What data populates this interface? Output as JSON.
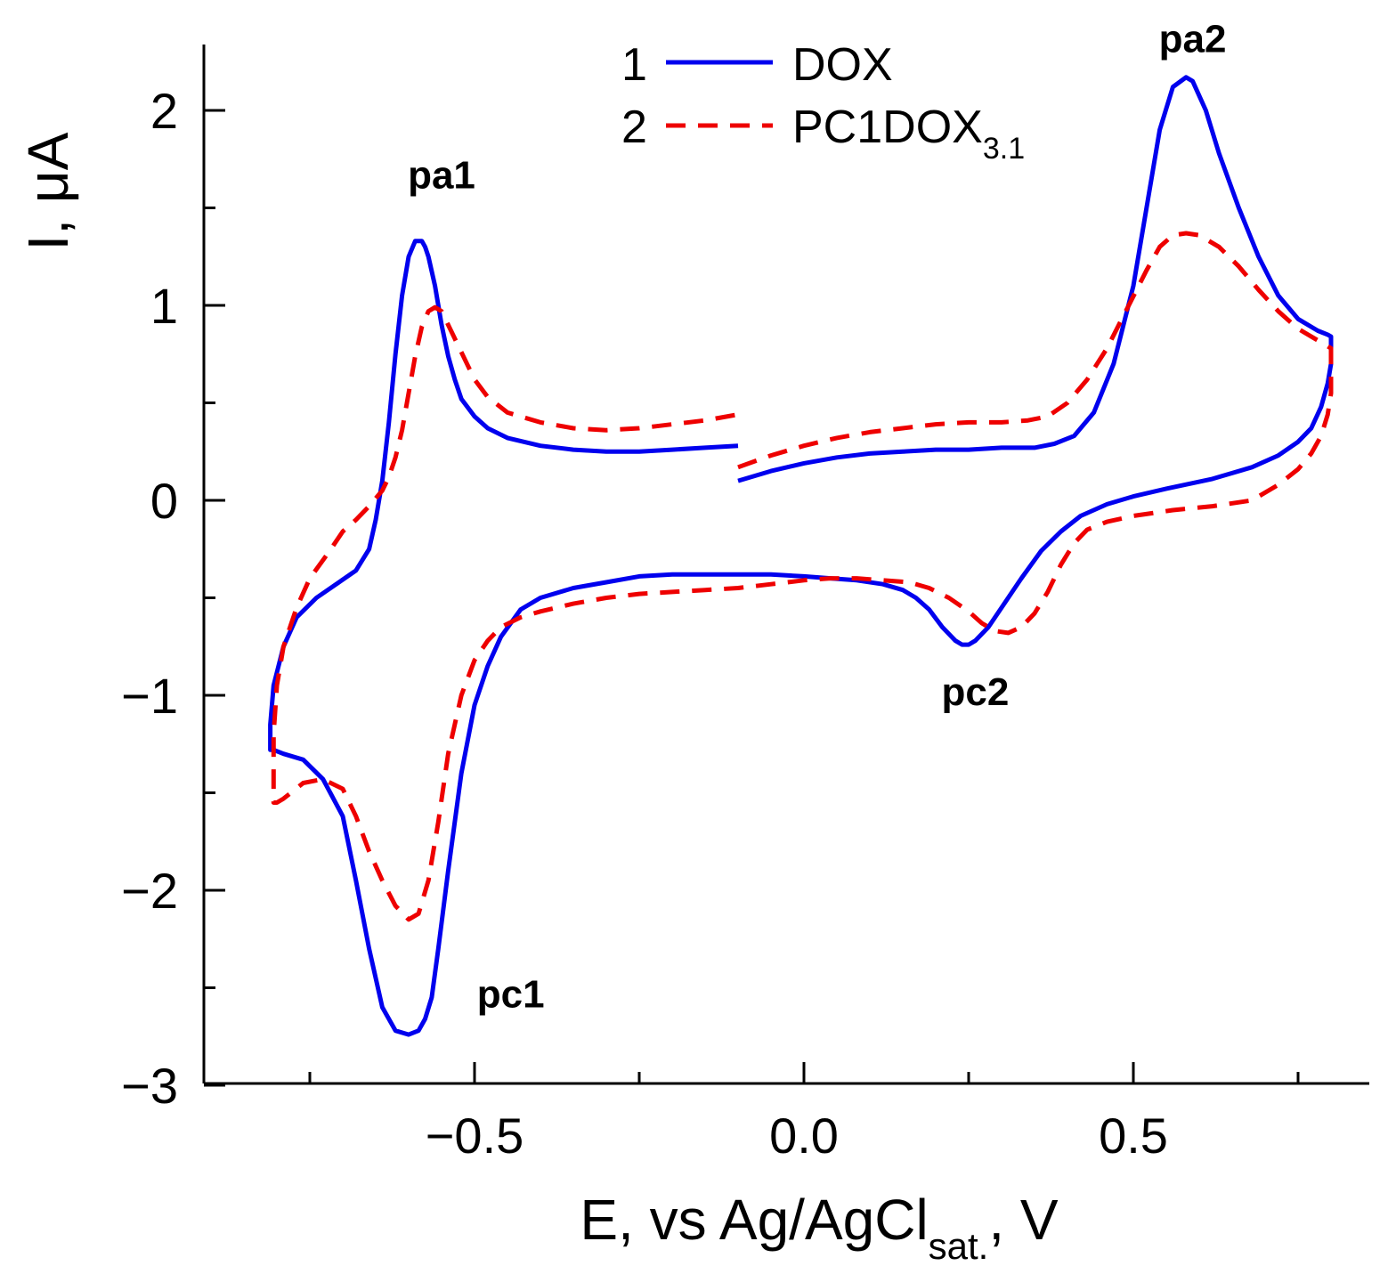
{
  "chart_data": {
    "type": "line",
    "title": "",
    "xlabel": "E, vs Ag/AgCl",
    "xlabel_subscript": "sat.",
    "xlabel_suffix": ", V",
    "ylabel": "I, μA",
    "xlim": [
      -0.9,
      0.85
    ],
    "ylim": [
      -3,
      2.35
    ],
    "grid": false,
    "x_major_ticks": [
      -0.5,
      0.0,
      0.5
    ],
    "x_tick_labels": [
      "−0.5",
      "0.0",
      "0.5"
    ],
    "x_minor_ticks": [
      -0.75,
      -0.25,
      0.25,
      0.75
    ],
    "y_major_ticks": [
      -3,
      -2,
      -1,
      0,
      1,
      2
    ],
    "y_tick_labels": [
      "−3",
      "−2",
      "−1",
      "0",
      "1",
      "2"
    ],
    "y_minor_ticks": [
      -2.5,
      -1.5,
      -0.5,
      0.5,
      1.5
    ],
    "legend": {
      "position": "top-center",
      "items": [
        {
          "number": "1",
          "label": "DOX",
          "subscript": ""
        },
        {
          "number": "2",
          "label": "PC1DOX",
          "subscript": "3.1"
        }
      ]
    },
    "annotations": [
      {
        "text": "pa1",
        "x": -0.55,
        "y": 1.6
      },
      {
        "text": "pa2",
        "x": 0.59,
        "y": 2.3
      },
      {
        "text": "pc1",
        "x": -0.445,
        "y": -2.6
      },
      {
        "text": "pc2",
        "x": 0.26,
        "y": -1.05
      }
    ],
    "series": [
      {
        "name": "1 DOX",
        "color": "#0000ee",
        "style": "solid",
        "x": [
          -0.1,
          -0.05,
          0.0,
          0.05,
          0.1,
          0.15,
          0.2,
          0.25,
          0.3,
          0.35,
          0.38,
          0.41,
          0.44,
          0.47,
          0.5,
          0.52,
          0.54,
          0.56,
          0.58,
          0.59,
          0.61,
          0.63,
          0.66,
          0.69,
          0.72,
          0.75,
          0.78,
          0.795,
          0.8,
          0.8,
          0.795,
          0.785,
          0.77,
          0.75,
          0.72,
          0.68,
          0.62,
          0.55,
          0.5,
          0.46,
          0.42,
          0.39,
          0.36,
          0.33,
          0.3,
          0.28,
          0.26,
          0.25,
          0.24,
          0.23,
          0.21,
          0.19,
          0.17,
          0.15,
          0.12,
          0.08,
          0.04,
          0.0,
          -0.05,
          -0.1,
          -0.15,
          -0.2,
          -0.25,
          -0.3,
          -0.35,
          -0.4,
          -0.43,
          -0.46,
          -0.48,
          -0.5,
          -0.52,
          -0.54,
          -0.555,
          -0.565,
          -0.575,
          -0.585,
          -0.6,
          -0.62,
          -0.64,
          -0.66,
          -0.68,
          -0.7,
          -0.73,
          -0.76,
          -0.79,
          -0.805,
          -0.81,
          -0.81,
          -0.805,
          -0.79,
          -0.77,
          -0.74,
          -0.71,
          -0.68,
          -0.66,
          -0.65,
          -0.64,
          -0.63,
          -0.62,
          -0.61,
          -0.6,
          -0.59,
          -0.58,
          -0.575,
          -0.57,
          -0.56,
          -0.55,
          -0.54,
          -0.53,
          -0.52,
          -0.5,
          -0.48,
          -0.45,
          -0.4,
          -0.35,
          -0.3,
          -0.25,
          -0.2,
          -0.15,
          -0.1
        ],
        "y": [
          0.1,
          0.15,
          0.19,
          0.22,
          0.24,
          0.25,
          0.26,
          0.26,
          0.27,
          0.27,
          0.29,
          0.33,
          0.45,
          0.7,
          1.1,
          1.5,
          1.9,
          2.12,
          2.17,
          2.15,
          2.0,
          1.78,
          1.5,
          1.25,
          1.05,
          0.93,
          0.87,
          0.85,
          0.84,
          0.7,
          0.6,
          0.48,
          0.37,
          0.3,
          0.23,
          0.17,
          0.11,
          0.06,
          0.02,
          -0.02,
          -0.08,
          -0.16,
          -0.26,
          -0.4,
          -0.55,
          -0.65,
          -0.72,
          -0.74,
          -0.74,
          -0.72,
          -0.65,
          -0.56,
          -0.5,
          -0.46,
          -0.43,
          -0.41,
          -0.4,
          -0.39,
          -0.38,
          -0.38,
          -0.38,
          -0.38,
          -0.39,
          -0.42,
          -0.45,
          -0.5,
          -0.56,
          -0.7,
          -0.85,
          -1.05,
          -1.4,
          -1.9,
          -2.3,
          -2.55,
          -2.66,
          -2.72,
          -2.74,
          -2.72,
          -2.6,
          -2.3,
          -1.95,
          -1.62,
          -1.43,
          -1.33,
          -1.3,
          -1.28,
          -1.28,
          -1.15,
          -0.95,
          -0.75,
          -0.6,
          -0.5,
          -0.43,
          -0.36,
          -0.25,
          -0.1,
          0.1,
          0.4,
          0.75,
          1.05,
          1.25,
          1.33,
          1.33,
          1.3,
          1.25,
          1.1,
          0.9,
          0.74,
          0.62,
          0.52,
          0.43,
          0.37,
          0.32,
          0.28,
          0.26,
          0.25,
          0.25,
          0.26,
          0.27,
          0.28
        ]
      },
      {
        "name": "2 PC1DOX3.1",
        "color": "#ee0000",
        "style": "dashed",
        "x": [
          -0.1,
          -0.05,
          0.0,
          0.05,
          0.1,
          0.15,
          0.2,
          0.25,
          0.3,
          0.34,
          0.37,
          0.4,
          0.43,
          0.46,
          0.49,
          0.52,
          0.54,
          0.56,
          0.58,
          0.6,
          0.63,
          0.66,
          0.69,
          0.72,
          0.75,
          0.78,
          0.795,
          0.8,
          0.8,
          0.795,
          0.785,
          0.77,
          0.75,
          0.72,
          0.68,
          0.62,
          0.56,
          0.5,
          0.46,
          0.43,
          0.41,
          0.39,
          0.37,
          0.35,
          0.33,
          0.31,
          0.29,
          0.27,
          0.25,
          0.22,
          0.19,
          0.16,
          0.12,
          0.08,
          0.04,
          0.0,
          -0.05,
          -0.1,
          -0.15,
          -0.2,
          -0.25,
          -0.3,
          -0.35,
          -0.4,
          -0.43,
          -0.46,
          -0.48,
          -0.5,
          -0.52,
          -0.54,
          -0.555,
          -0.57,
          -0.585,
          -0.6,
          -0.62,
          -0.64,
          -0.66,
          -0.68,
          -0.7,
          -0.73,
          -0.76,
          -0.79,
          -0.8,
          -0.805,
          -0.805,
          -0.8,
          -0.79,
          -0.77,
          -0.75,
          -0.72,
          -0.7,
          -0.68,
          -0.66,
          -0.64,
          -0.63,
          -0.62,
          -0.61,
          -0.6,
          -0.59,
          -0.58,
          -0.57,
          -0.56,
          -0.55,
          -0.54,
          -0.52,
          -0.5,
          -0.48,
          -0.45,
          -0.4,
          -0.35,
          -0.3,
          -0.25,
          -0.2,
          -0.15,
          -0.1
        ],
        "y": [
          0.17,
          0.23,
          0.28,
          0.32,
          0.35,
          0.37,
          0.39,
          0.4,
          0.4,
          0.41,
          0.43,
          0.5,
          0.62,
          0.78,
          0.98,
          1.18,
          1.3,
          1.36,
          1.37,
          1.36,
          1.3,
          1.2,
          1.08,
          0.97,
          0.88,
          0.82,
          0.79,
          0.78,
          0.55,
          0.44,
          0.33,
          0.24,
          0.16,
          0.08,
          0.0,
          -0.03,
          -0.05,
          -0.08,
          -0.11,
          -0.15,
          -0.22,
          -0.33,
          -0.47,
          -0.58,
          -0.65,
          -0.68,
          -0.67,
          -0.63,
          -0.57,
          -0.5,
          -0.45,
          -0.42,
          -0.41,
          -0.4,
          -0.4,
          -0.41,
          -0.43,
          -0.45,
          -0.46,
          -0.47,
          -0.48,
          -0.5,
          -0.53,
          -0.57,
          -0.6,
          -0.65,
          -0.72,
          -0.82,
          -1.0,
          -1.3,
          -1.65,
          -1.95,
          -2.12,
          -2.15,
          -2.08,
          -1.95,
          -1.8,
          -1.62,
          -1.48,
          -1.43,
          -1.45,
          -1.53,
          -1.55,
          -1.55,
          -1.2,
          -0.95,
          -0.75,
          -0.55,
          -0.4,
          -0.26,
          -0.16,
          -0.1,
          -0.03,
          0.05,
          0.12,
          0.22,
          0.36,
          0.55,
          0.74,
          0.89,
          0.97,
          0.99,
          0.97,
          0.9,
          0.76,
          0.62,
          0.53,
          0.45,
          0.4,
          0.37,
          0.36,
          0.37,
          0.39,
          0.41,
          0.44
        ]
      }
    ]
  }
}
